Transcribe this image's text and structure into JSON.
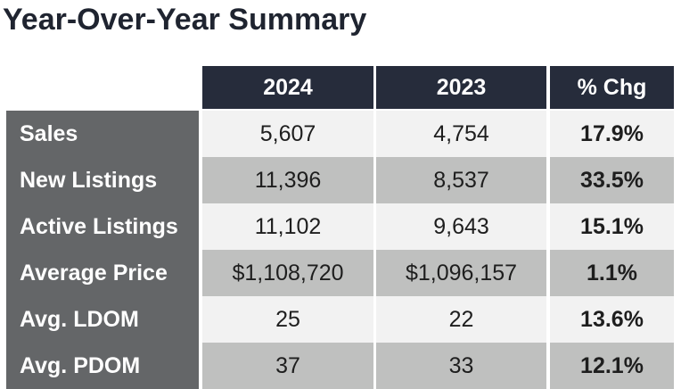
{
  "title": "Year-Over-Year Summary",
  "columns": {
    "year_current": "2024",
    "year_previous": "2023",
    "pct_change": "% Chg"
  },
  "rows": [
    {
      "label": "Sales",
      "v2024": "5,607",
      "v2023": "4,754",
      "chg": "17.9%"
    },
    {
      "label": "New Listings",
      "v2024": "11,396",
      "v2023": "8,537",
      "chg": "33.5%"
    },
    {
      "label": "Active Listings",
      "v2024": "11,102",
      "v2023": "9,643",
      "chg": "15.1%"
    },
    {
      "label": "Average Price",
      "v2024": "$1,108,720",
      "v2023": "$1,096,157",
      "chg": "1.1%"
    },
    {
      "label": "Avg. LDOM",
      "v2024": "25",
      "v2023": "22",
      "chg": "13.6%"
    },
    {
      "label": "Avg. PDOM",
      "v2024": "37",
      "v2023": "33",
      "chg": "12.1%"
    }
  ],
  "colors": {
    "header_bg": "#262c3b",
    "label_bg": "#646668",
    "row_light": "#f2f2f2",
    "row_dark": "#bfc0bf",
    "title": "#1f2430"
  }
}
